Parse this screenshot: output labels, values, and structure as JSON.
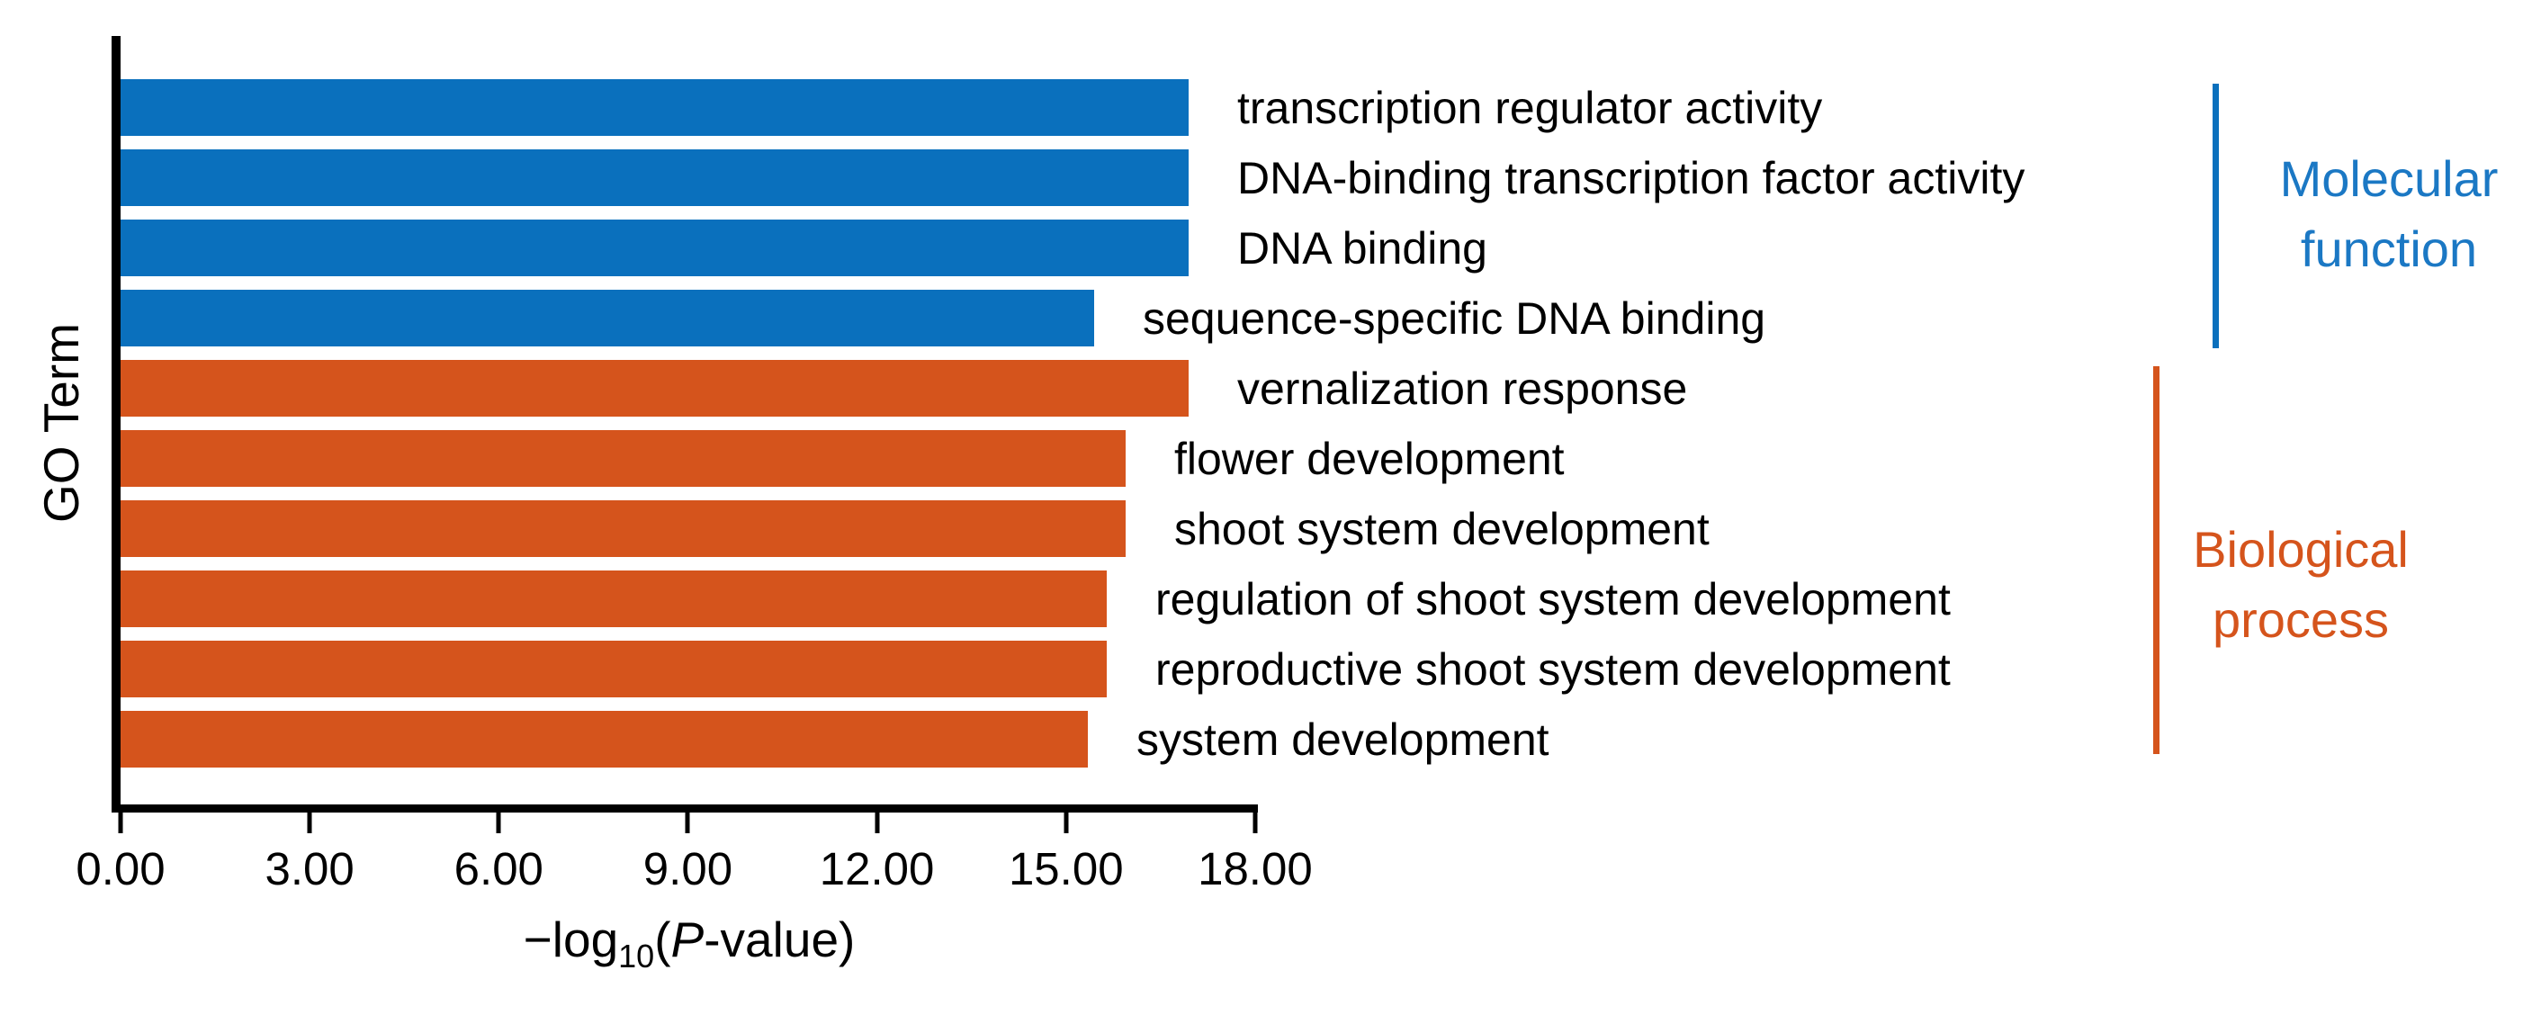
{
  "chart_data": {
    "type": "bar",
    "orientation": "horizontal",
    "xlabel": "−log10(P-value)",
    "xlabel_parts": {
      "prefix": "−log",
      "subscript": "10",
      "open_paren": "(",
      "p_italic": "P",
      "suffix": "-value)"
    },
    "ylabel": "GO Term",
    "xlim": [
      0,
      18
    ],
    "grid": false,
    "x_ticks": [
      {
        "value": 0,
        "label": "0.00"
      },
      {
        "value": 3,
        "label": "3.00"
      },
      {
        "value": 6,
        "label": "6.00"
      },
      {
        "value": 9,
        "label": "9.00"
      },
      {
        "value": 12,
        "label": "12.00"
      },
      {
        "value": 15,
        "label": "15.00"
      },
      {
        "value": 18,
        "label": "18.00"
      }
    ],
    "groups": {
      "molecular_function": {
        "name": "Molecular function",
        "legend_line1": "Molecular",
        "legend_line2": "function",
        "bar_color": "#0A70BD",
        "text_color": "#1B78C4"
      },
      "biological_process": {
        "name": "Biological process",
        "legend_line1": "Biological",
        "legend_line2": "process",
        "bar_color": "#D5541C",
        "text_color": "#D5541C"
      }
    },
    "bars": [
      {
        "label": "transcription regulator activity",
        "value": 16.95,
        "group": "molecular_function"
      },
      {
        "label": "DNA-binding transcription factor activity",
        "value": 16.95,
        "group": "molecular_function"
      },
      {
        "label": "DNA binding",
        "value": 16.95,
        "group": "molecular_function"
      },
      {
        "label": "sequence-specific DNA binding",
        "value": 15.45,
        "group": "molecular_function"
      },
      {
        "label": "vernalization response",
        "value": 16.95,
        "group": "biological_process"
      },
      {
        "label": "flower development",
        "value": 15.95,
        "group": "biological_process"
      },
      {
        "label": "shoot system development",
        "value": 15.95,
        "group": "biological_process"
      },
      {
        "label": "regulation of shoot system development",
        "value": 15.65,
        "group": "biological_process"
      },
      {
        "label": "reproductive shoot system development",
        "value": 15.65,
        "group": "biological_process"
      },
      {
        "label": "system development",
        "value": 15.35,
        "group": "biological_process"
      }
    ]
  }
}
